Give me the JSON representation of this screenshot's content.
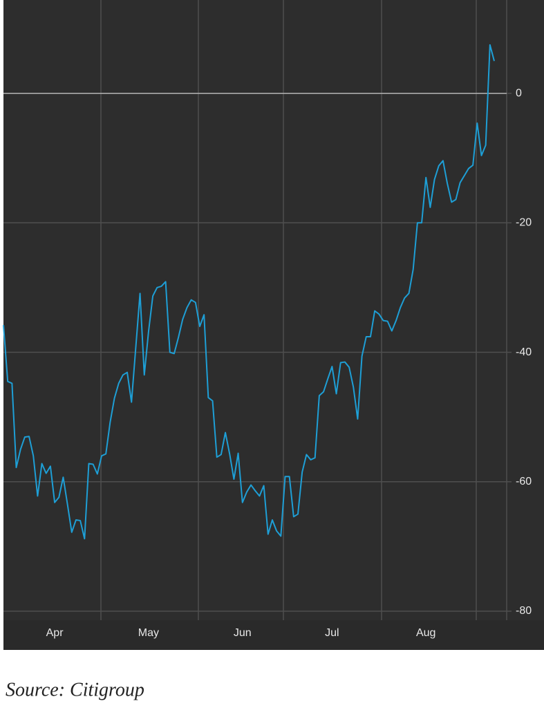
{
  "chart_data": {
    "type": "line",
    "source": "Source: Citigroup",
    "categories": [
      null,
      null,
      null,
      null,
      null,
      null,
      null,
      null,
      null,
      null,
      null,
      null,
      "Apr",
      null,
      null,
      null,
      null,
      null,
      null,
      null,
      null,
      null,
      null,
      null,
      null,
      null,
      null,
      null,
      null,
      null,
      null,
      null,
      null,
      null,
      "May",
      null,
      null,
      null,
      null,
      null,
      null,
      null,
      null,
      null,
      null,
      null,
      null,
      null,
      null,
      null,
      null,
      null,
      null,
      null,
      null,
      null,
      "Jun",
      null,
      null,
      null,
      null,
      null,
      null,
      null,
      null,
      null,
      null,
      null,
      null,
      null,
      null,
      null,
      null,
      null,
      null,
      null,
      null,
      "Jul",
      null,
      null,
      null,
      null,
      null,
      null,
      null,
      null,
      null,
      null,
      null,
      null,
      null,
      null,
      null,
      null,
      null,
      null,
      null,
      null,
      null,
      "Aug",
      null,
      null,
      null,
      null,
      null,
      null,
      null,
      null,
      null,
      null,
      null,
      null,
      null,
      null,
      null,
      null
    ],
    "values": [
      -35.8,
      -44.5,
      -44.8,
      -57.8,
      -55,
      -53.1,
      -53,
      -56,
      -62.2,
      -57.2,
      -58.7,
      -57.6,
      -63.2,
      -62.4,
      -59.3,
      -63.5,
      -67.8,
      -65.9,
      -66,
      -68.8,
      -57.2,
      -57.3,
      -58.8,
      -56,
      -55.7,
      -50.8,
      -47.1,
      -44.8,
      -43.5,
      -43.1,
      -47.7,
      -39.3,
      -30.9,
      -43.5,
      -36.8,
      -31.3,
      -30,
      -29.8,
      -29.1,
      -40,
      -40.2,
      -37.7,
      -34.9,
      -33.1,
      -31.9,
      -32.3,
      -36,
      -34.2,
      -47,
      -47.5,
      -56.2,
      -55.8,
      -52.4,
      -55.7,
      -59.6,
      -55.6,
      -63.2,
      -61.6,
      -60.5,
      -61.4,
      -62.2,
      -60.6,
      -68.1,
      -65.9,
      -67.6,
      -68.4,
      -59.2,
      -59.2,
      -65.4,
      -65,
      -58.5,
      -55.8,
      -56.6,
      -56.3,
      -46.7,
      -46.1,
      -44.1,
      -42.2,
      -46.4,
      -41.6,
      -41.5,
      -42.3,
      -45.4,
      -50.3,
      -40.6,
      -37.6,
      -37.6,
      -33.6,
      -34.1,
      -35.1,
      -35.2,
      -36.7,
      -35.1,
      -33.1,
      -31.6,
      -30.9,
      -27.2,
      -20,
      -20,
      -13,
      -17.6,
      -13.3,
      -11.2,
      -10.4,
      -13.9,
      -16.8,
      -16.4,
      -13.8,
      -12.7,
      -11.6,
      -11.1,
      -4.6,
      -9.6,
      -8,
      7.5,
      5
    ],
    "color": "#1e9fd6",
    "ylim": [
      -80,
      14
    ],
    "yticks": [
      0,
      -20,
      -40,
      -60,
      -80
    ],
    "grid": true
  }
}
